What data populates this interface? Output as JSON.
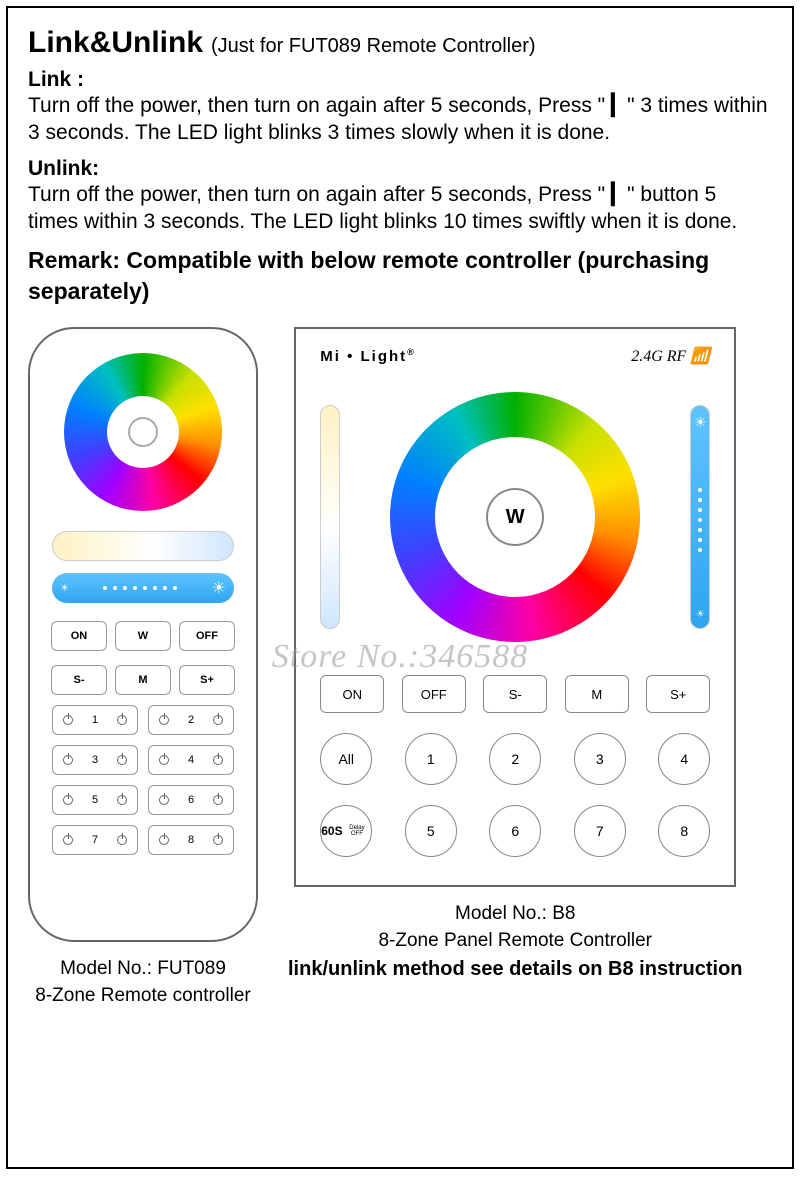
{
  "title": "Link&Unlink",
  "subtitle": "(Just for FUT089 Remote Controller)",
  "link": {
    "head": "Link :",
    "body": "Turn off the power, then turn on again after 5 seconds, Press \" ▎\" 3 times within 3 seconds. The LED light blinks 3 times slowly when it is done."
  },
  "unlink": {
    "head": "Unlink:",
    "body": "Turn off the power, then turn on again after 5 seconds, Press \" ▎\" button 5 times within 3 seconds. The LED light blinks 10 times swiftly when it is done."
  },
  "remark": "Remark: Compatible with below remote controller (purchasing separately)",
  "watermark": "Store No.:346588",
  "remote": {
    "btns1": [
      "ON",
      "W",
      "OFF"
    ],
    "btns2": [
      "S-",
      "M",
      "S+"
    ],
    "zones": [
      "1",
      "2",
      "3",
      "4",
      "5",
      "6",
      "7",
      "8"
    ],
    "model": "Model No.: FUT089",
    "desc": "8-Zone Remote controller"
  },
  "panel": {
    "brand": "Mi",
    "brand2": "Light",
    "rf": "2.4G RF",
    "center": "W",
    "btns": [
      "ON",
      "OFF",
      "S-",
      "M",
      "S+"
    ],
    "row1": [
      "All",
      "1",
      "2",
      "3",
      "4"
    ],
    "row2": [
      "60S\nDelay OFF",
      "5",
      "6",
      "7",
      "8"
    ],
    "model": "Model No.: B8",
    "desc": "8-Zone Panel Remote Controller",
    "note": "link/unlink method see details on B8 instruction"
  }
}
